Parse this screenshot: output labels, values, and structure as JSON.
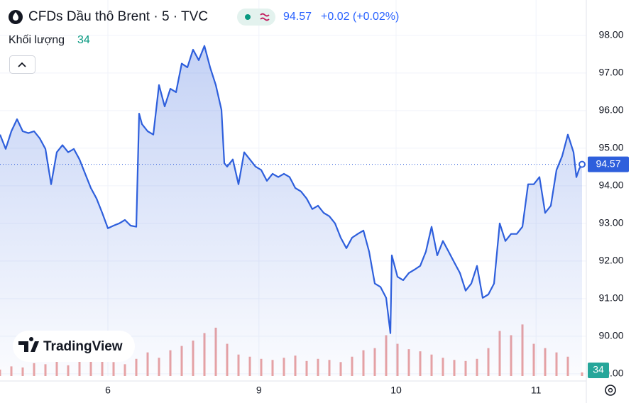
{
  "chart_data": {
    "type": "line",
    "title": "CFDs Dầu thô Brent · 5 · TVC",
    "last_price": 94.57,
    "change": "+0.02 (+0.02%)",
    "watermark": "TradingView",
    "x": [
      0,
      1,
      2,
      3,
      4,
      5,
      6,
      7,
      8,
      9,
      10,
      11,
      12,
      13,
      14,
      15,
      16,
      17,
      18,
      19,
      20,
      21,
      22,
      23,
      24,
      24.5,
      25,
      26,
      27,
      28,
      29,
      30,
      31,
      32,
      33,
      34,
      35,
      36,
      37,
      38,
      39,
      39.5,
      40,
      41,
      42,
      43,
      44,
      45,
      46,
      47,
      48,
      49,
      50,
      51,
      52,
      53,
      54,
      55,
      56,
      57,
      58,
      59,
      60,
      61,
      62,
      63,
      64,
      65,
      66,
      67,
      68,
      68.75,
      69,
      70,
      71,
      72,
      73,
      74,
      75,
      76,
      77,
      78,
      79,
      80,
      81,
      82,
      83,
      84,
      85,
      86,
      87,
      88,
      89,
      90,
      91,
      92,
      93,
      94,
      95,
      96,
      97,
      98,
      99,
      100,
      101,
      101.5,
      102,
      102.5
    ],
    "series": [
      {
        "color": "#2e5fdc",
        "values": [
          95.36,
          94.98,
          95.45,
          95.77,
          95.45,
          95.4,
          95.45,
          95.26,
          94.98,
          94.04,
          94.89,
          95.08,
          94.89,
          94.98,
          94.7,
          94.32,
          93.94,
          93.66,
          93.28,
          92.87,
          92.94,
          93.0,
          93.09,
          92.94,
          92.91,
          95.92,
          95.64,
          95.45,
          95.36,
          96.68,
          96.11,
          96.58,
          96.49,
          97.25,
          97.15,
          97.62,
          97.34,
          97.72,
          97.15,
          96.68,
          96.02,
          94.6,
          94.51,
          94.7,
          94.04,
          94.89,
          94.7,
          94.51,
          94.42,
          94.13,
          94.32,
          94.23,
          94.32,
          94.23,
          93.94,
          93.85,
          93.66,
          93.38,
          93.47,
          93.28,
          93.19,
          93.0,
          92.62,
          92.34,
          92.62,
          92.72,
          92.81,
          92.25,
          91.4,
          91.31,
          91.02,
          90.08,
          92.15,
          91.58,
          91.49,
          91.68,
          91.77,
          91.87,
          92.25,
          92.91,
          92.15,
          92.53,
          92.25,
          91.96,
          91.68,
          91.21,
          91.4,
          91.87,
          91.02,
          91.11,
          91.4,
          93.0,
          92.53,
          92.72,
          92.72,
          92.91,
          94.04,
          94.04,
          94.23,
          93.28,
          93.47,
          94.42,
          94.79,
          95.36,
          94.89,
          94.23,
          94.45,
          94.57
        ]
      },
      {
        "name": "Khối lượng",
        "type": "bar",
        "axis": "y2",
        "color": "#eaa3a3",
        "x": [
          0,
          2,
          4,
          6,
          8,
          10,
          12,
          14,
          16,
          18,
          20,
          22,
          24,
          26,
          28,
          30,
          32,
          34,
          36,
          38,
          40,
          42,
          44,
          46,
          48,
          50,
          52,
          54,
          56,
          58,
          60,
          62,
          64,
          66,
          68,
          70,
          72,
          74,
          76,
          78,
          80,
          82,
          84,
          86,
          88,
          90,
          92,
          94,
          96,
          98,
          100,
          102.5
        ],
        "values": [
          60,
          90,
          80,
          120,
          110,
          150,
          100,
          140,
          200,
          180,
          130,
          110,
          160,
          220,
          170,
          240,
          280,
          330,
          400,
          450,
          300,
          200,
          180,
          160,
          150,
          170,
          190,
          140,
          160,
          150,
          130,
          180,
          240,
          260,
          380,
          300,
          250,
          230,
          200,
          170,
          150,
          140,
          160,
          260,
          420,
          380,
          480,
          300,
          260,
          220,
          180,
          34
        ]
      }
    ],
    "xlim": [
      0,
      103.25
    ],
    "xticks": [
      {
        "value": 19,
        "label": "6"
      },
      {
        "value": 45.6,
        "label": "9"
      },
      {
        "value": 69.75,
        "label": "10"
      },
      {
        "value": 94.4,
        "label": "11"
      }
    ],
    "ylim": [
      88.94,
      98.94
    ],
    "yticks": [
      {
        "value": 89,
        "label": "89.00"
      },
      {
        "value": 90,
        "label": "90.00"
      },
      {
        "value": 91,
        "label": "91.00"
      },
      {
        "value": 92,
        "label": "92.00"
      },
      {
        "value": 93,
        "label": "93.00"
      },
      {
        "value": 94,
        "label": "94.00"
      },
      {
        "value": 95,
        "label": "95.00"
      },
      {
        "value": 96,
        "label": "96.00"
      },
      {
        "value": 97,
        "label": "97.00"
      },
      {
        "value": 98,
        "label": "98.00"
      }
    ],
    "y2lim": [
      0,
      3500
    ],
    "grid": true
  }
}
